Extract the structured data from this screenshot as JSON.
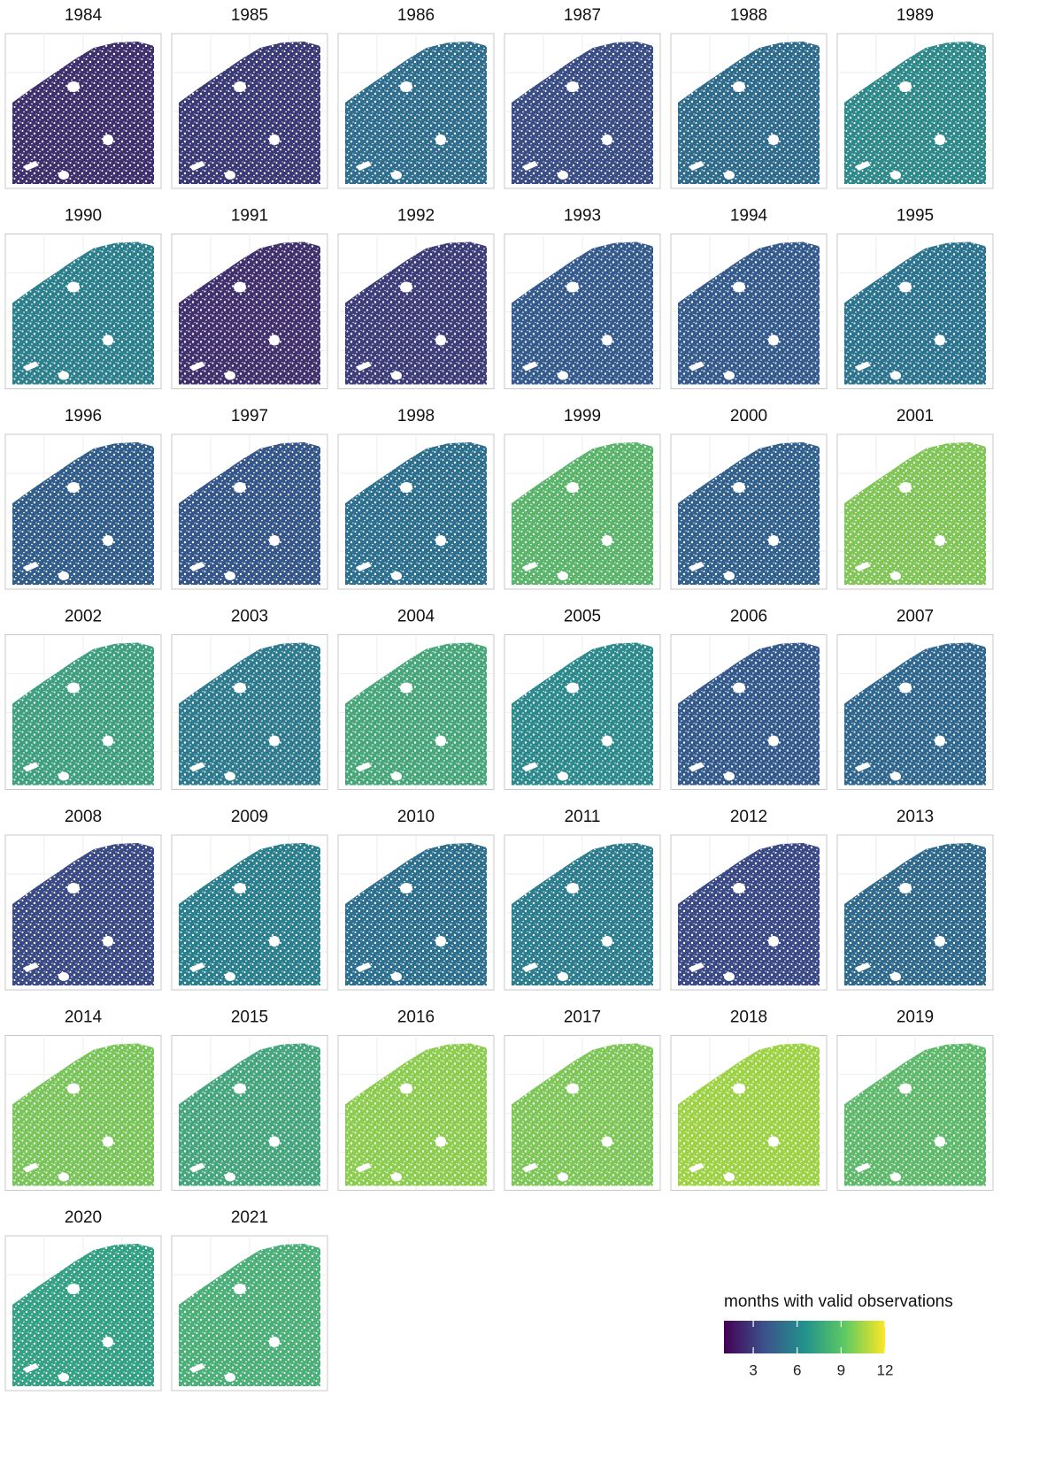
{
  "panels": [
    {
      "title": "1984",
      "color": "#3e2f6f"
    },
    {
      "title": "1985",
      "color": "#3b3a78"
    },
    {
      "title": "1986",
      "color": "#2f6e8e"
    },
    {
      "title": "1987",
      "color": "#3a4d85"
    },
    {
      "title": "1988",
      "color": "#2f6b8c"
    },
    {
      "title": "1989",
      "color": "#2e8a8a"
    },
    {
      "title": "1990",
      "color": "#2c7f8d"
    },
    {
      "title": "1991",
      "color": "#40306e"
    },
    {
      "title": "1992",
      "color": "#3d3d7a"
    },
    {
      "title": "1993",
      "color": "#345b8c"
    },
    {
      "title": "1994",
      "color": "#355a8c"
    },
    {
      "title": "1995",
      "color": "#2b738e"
    },
    {
      "title": "1996",
      "color": "#315d8c"
    },
    {
      "title": "1997",
      "color": "#34568b"
    },
    {
      "title": "1998",
      "color": "#2d6f8e"
    },
    {
      "title": "1999",
      "color": "#5ab56b"
    },
    {
      "title": "2000",
      "color": "#32618d"
    },
    {
      "title": "2001",
      "color": "#7fc656"
    },
    {
      "title": "2002",
      "color": "#3fa07f"
    },
    {
      "title": "2003",
      "color": "#2e7a8e"
    },
    {
      "title": "2004",
      "color": "#48a77a"
    },
    {
      "title": "2005",
      "color": "#2d8a8c"
    },
    {
      "title": "2006",
      "color": "#345a8c"
    },
    {
      "title": "2007",
      "color": "#2f678e"
    },
    {
      "title": "2008",
      "color": "#394a87"
    },
    {
      "title": "2009",
      "color": "#2a7f8e"
    },
    {
      "title": "2010",
      "color": "#2d6f8e"
    },
    {
      "title": "2011",
      "color": "#2c7d8e"
    },
    {
      "title": "2012",
      "color": "#3a4a86"
    },
    {
      "title": "2013",
      "color": "#2f6a8e"
    },
    {
      "title": "2014",
      "color": "#7ac55a"
    },
    {
      "title": "2015",
      "color": "#45a57d"
    },
    {
      "title": "2016",
      "color": "#8ccd4f"
    },
    {
      "title": "2017",
      "color": "#7ec657"
    },
    {
      "title": "2018",
      "color": "#9dd245"
    },
    {
      "title": "2019",
      "color": "#5eb96a"
    },
    {
      "title": "2020",
      "color": "#33a184"
    },
    {
      "title": "2021",
      "color": "#4bb078"
    }
  ],
  "legend": {
    "title": "months with valid observations",
    "ticks": [
      3,
      6,
      9,
      12
    ],
    "lim": [
      1,
      12
    ],
    "colors": [
      "#440154",
      "#3b528b",
      "#21918c",
      "#5ec962",
      "#fde725"
    ]
  }
}
